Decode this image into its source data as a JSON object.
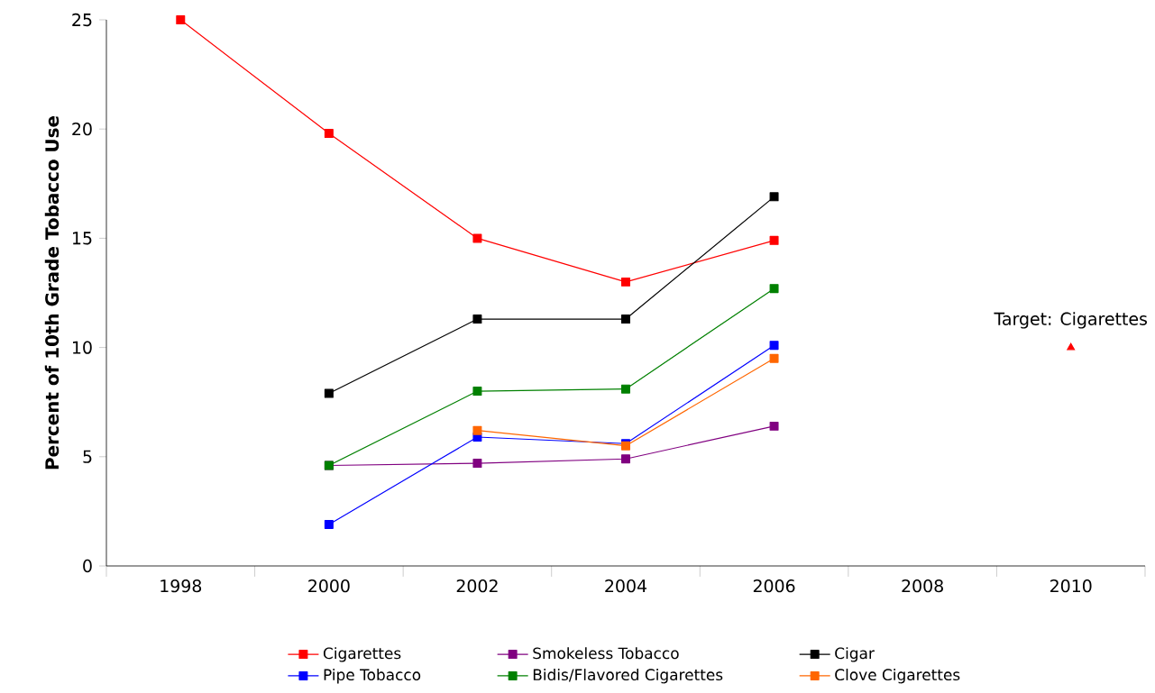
{
  "chart_data": {
    "type": "line",
    "ylabel": "Percent of 10th Grade Tobacco Use",
    "categories": [
      "1998",
      "2000",
      "2002",
      "2004",
      "2006",
      "2008",
      "2010"
    ],
    "ylim": [
      0,
      25
    ],
    "yticks": [
      0,
      5,
      10,
      15,
      20,
      25
    ],
    "marker": "square",
    "legend": "bottom",
    "series": [
      {
        "name": "Cigarettes",
        "color": "#ff0000",
        "values": [
          25,
          19.8,
          15.0,
          13.0,
          14.9,
          null,
          null
        ]
      },
      {
        "name": "Smokeless Tobacco",
        "color": "#800080",
        "values": [
          null,
          4.6,
          4.7,
          4.9,
          6.4,
          null,
          null
        ]
      },
      {
        "name": "Cigar",
        "color": "#000000",
        "values": [
          null,
          7.9,
          11.3,
          11.3,
          16.9,
          null,
          null
        ]
      },
      {
        "name": "Pipe Tobacco",
        "color": "#0000ff",
        "values": [
          null,
          1.9,
          5.9,
          5.6,
          10.1,
          null,
          null
        ]
      },
      {
        "name": "Bidis/Flavored Cigarettes",
        "color": "#008000",
        "values": [
          null,
          4.6,
          8.0,
          8.1,
          12.7,
          null,
          null
        ]
      },
      {
        "name": "Clove Cigarettes",
        "color": "#ff6600",
        "values": [
          null,
          null,
          6.2,
          5.5,
          9.5,
          null,
          null
        ]
      },
      {
        "name": "Target: Cigarettes",
        "type": "scatter",
        "marker": "triangle",
        "color": "#ff0000",
        "values": [
          null,
          null,
          null,
          null,
          null,
          null,
          10
        ]
      }
    ]
  }
}
